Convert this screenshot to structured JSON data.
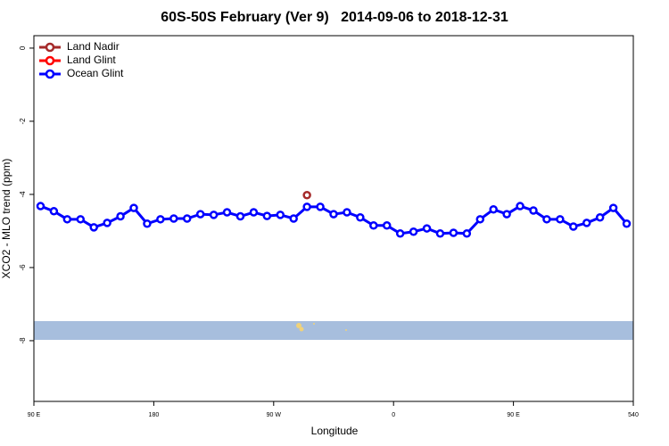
{
  "chart_data": {
    "type": "line",
    "title": "60S-50S February (Ver 9)   2014-09-06 to 2018-12-31",
    "x_label": "Longitude",
    "y_label": "XCO2 - MLO trend (ppm)",
    "xlim": [
      90,
      540
    ],
    "xticks": [
      {
        "value": 90,
        "label": "90 E"
      },
      180,
      {
        "value": 270,
        "label": "90 W"
      },
      {
        "value": 360,
        "label": "0"
      },
      {
        "value": 450,
        "label": "90 E"
      },
      540
    ],
    "ylim": [
      -9.66,
      0.34
    ],
    "yticks": [
      0,
      -2,
      -4,
      -6,
      -8
    ],
    "legend": "top-left",
    "series": [
      {
        "name": "Land Nadir",
        "color": "#a52a2a",
        "x": [
          295
        ],
        "values": [
          -4.02
        ]
      },
      {
        "name": "Land Glint",
        "color": "#ff0000",
        "x": [],
        "values": []
      },
      {
        "name": "Ocean Glint",
        "color": "#0000ff",
        "x": [
          95,
          105,
          115,
          125,
          135,
          145,
          155,
          165,
          175,
          185,
          195,
          205,
          215,
          225,
          235,
          245,
          255,
          265,
          275,
          285,
          295,
          305,
          315,
          325,
          335,
          345,
          355,
          365,
          375,
          385,
          395,
          405,
          415,
          425,
          435,
          445,
          455,
          465,
          475,
          485,
          495,
          505,
          515,
          525,
          535
        ],
        "values": [
          -4.32,
          -4.46,
          -4.68,
          -4.68,
          -4.9,
          -4.78,
          -4.6,
          -4.37,
          -4.8,
          -4.68,
          -4.66,
          -4.66,
          -4.54,
          -4.56,
          -4.49,
          -4.6,
          -4.49,
          -4.59,
          -4.56,
          -4.66,
          -4.34,
          -4.34,
          -4.54,
          -4.49,
          -4.63,
          -4.85,
          -4.85,
          -5.07,
          -5.02,
          -4.93,
          -5.07,
          -5.05,
          -5.07,
          -4.68,
          -4.41,
          -4.54,
          -4.32,
          -4.44,
          -4.68,
          -4.68,
          -4.88,
          -4.78,
          -4.63,
          -4.37,
          -4.8
        ]
      }
    ]
  }
}
